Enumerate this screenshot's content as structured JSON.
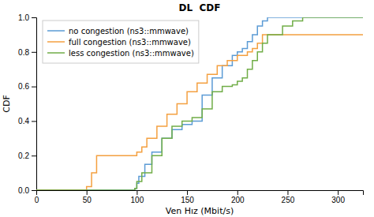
{
  "chart_data": {
    "type": "line",
    "title": "DL  CDF",
    "xlabel": "Ven Hız (Mbit/s)",
    "ylabel": "CDF",
    "xlim": [
      0,
      325
    ],
    "ylim": [
      0,
      1.0
    ],
    "xticks": [
      0,
      50,
      100,
      150,
      200,
      250,
      300
    ],
    "yticks": [
      {
        "value": 0,
        "label": "0.0"
      },
      0.2,
      0.4,
      0.6,
      0.8,
      {
        "value": 1,
        "label": "1.0"
      }
    ],
    "legend": "upper left",
    "grid": false,
    "series": [
      {
        "name": "no congestion (ns3::mmwave)",
        "color": "#5b9bd5",
        "x": [
          0,
          98,
          98,
          100,
          100,
          102,
          102,
          108,
          108,
          115,
          115,
          125,
          125,
          135,
          135,
          145,
          145,
          155,
          155,
          165,
          165,
          175,
          175,
          185,
          185,
          195,
          195,
          200,
          200,
          205,
          205,
          210,
          210,
          215,
          215,
          220,
          220,
          225,
          225,
          230,
          230,
          325
        ],
        "values": [
          0,
          0,
          0.01,
          0.01,
          0.04,
          0.04,
          0.08,
          0.08,
          0.15,
          0.15,
          0.22,
          0.22,
          0.3,
          0.3,
          0.35,
          0.35,
          0.38,
          0.38,
          0.4,
          0.4,
          0.55,
          0.55,
          0.65,
          0.65,
          0.72,
          0.72,
          0.78,
          0.78,
          0.8,
          0.8,
          0.82,
          0.82,
          0.86,
          0.86,
          0.9,
          0.9,
          0.95,
          0.95,
          0.98,
          0.98,
          1.0,
          1.0
        ]
      },
      {
        "name": "full congestion (ns3::mmwave)",
        "color": "#f4a040",
        "x": [
          0,
          50,
          50,
          55,
          55,
          60,
          60,
          100,
          100,
          105,
          105,
          110,
          110,
          120,
          120,
          130,
          130,
          140,
          140,
          150,
          150,
          160,
          160,
          170,
          170,
          180,
          180,
          190,
          190,
          200,
          200,
          210,
          210,
          215,
          215,
          220,
          220,
          225,
          225,
          230,
          230,
          325
        ],
        "values": [
          0,
          0,
          0.02,
          0.02,
          0.1,
          0.1,
          0.2,
          0.2,
          0.22,
          0.22,
          0.25,
          0.25,
          0.3,
          0.3,
          0.37,
          0.37,
          0.44,
          0.44,
          0.5,
          0.5,
          0.57,
          0.57,
          0.62,
          0.62,
          0.67,
          0.67,
          0.72,
          0.72,
          0.75,
          0.75,
          0.78,
          0.78,
          0.8,
          0.8,
          0.82,
          0.82,
          0.85,
          0.85,
          0.9,
          0.9,
          0.9,
          0.9
        ]
      },
      {
        "name": "less congestion (ns3::mmwave)",
        "color": "#70ad47",
        "x": [
          0,
          98,
          98,
          100,
          100,
          105,
          105,
          115,
          115,
          125,
          125,
          135,
          135,
          145,
          145,
          155,
          155,
          165,
          165,
          175,
          175,
          185,
          185,
          195,
          195,
          200,
          200,
          205,
          205,
          210,
          210,
          215,
          215,
          220,
          220,
          225,
          225,
          230,
          230,
          245,
          245,
          255,
          255,
          265,
          265,
          275,
          275,
          325
        ],
        "values": [
          0,
          0,
          0.01,
          0.01,
          0.05,
          0.05,
          0.1,
          0.1,
          0.2,
          0.2,
          0.3,
          0.3,
          0.37,
          0.37,
          0.4,
          0.4,
          0.42,
          0.42,
          0.47,
          0.47,
          0.57,
          0.57,
          0.6,
          0.6,
          0.61,
          0.61,
          0.63,
          0.63,
          0.65,
          0.65,
          0.7,
          0.7,
          0.75,
          0.75,
          0.8,
          0.8,
          0.85,
          0.85,
          0.9,
          0.9,
          0.95,
          0.95,
          0.98,
          0.98,
          1.0,
          1.0,
          1.0,
          1.0
        ]
      }
    ]
  }
}
